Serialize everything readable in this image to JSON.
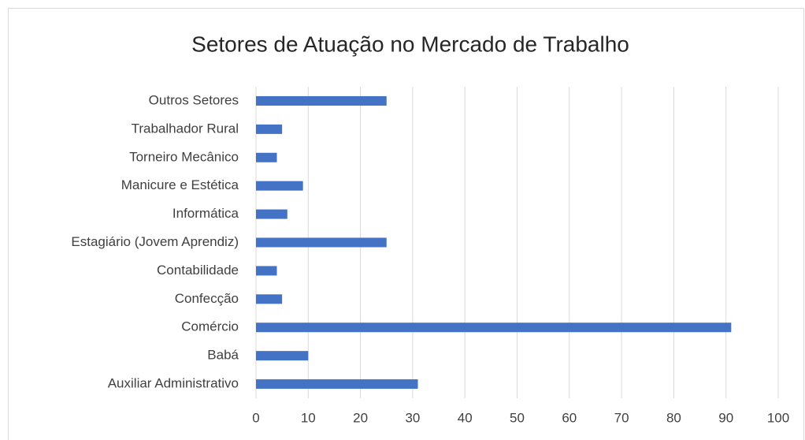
{
  "chart_data": {
    "type": "bar",
    "orientation": "horizontal",
    "title": "Setores de Atuação no Mercado de Trabalho",
    "categories": [
      "Auxiliar Administrativo",
      "Babá",
      "Comércio",
      "Confecção",
      "Contabilidade",
      "Estagiário (Jovem Aprendiz)",
      "Informática",
      "Manicure e Estética",
      "Torneiro Mecânico",
      "Trabalhador Rural",
      "Outros Setores"
    ],
    "values": [
      31,
      10,
      91,
      5,
      4,
      25,
      6,
      9,
      4,
      5,
      25
    ],
    "color": "#4472c4",
    "xlim": [
      0,
      100
    ],
    "xticks": [
      0,
      10,
      20,
      30,
      40,
      50,
      60,
      70,
      80,
      90,
      100
    ],
    "grid": true
  }
}
